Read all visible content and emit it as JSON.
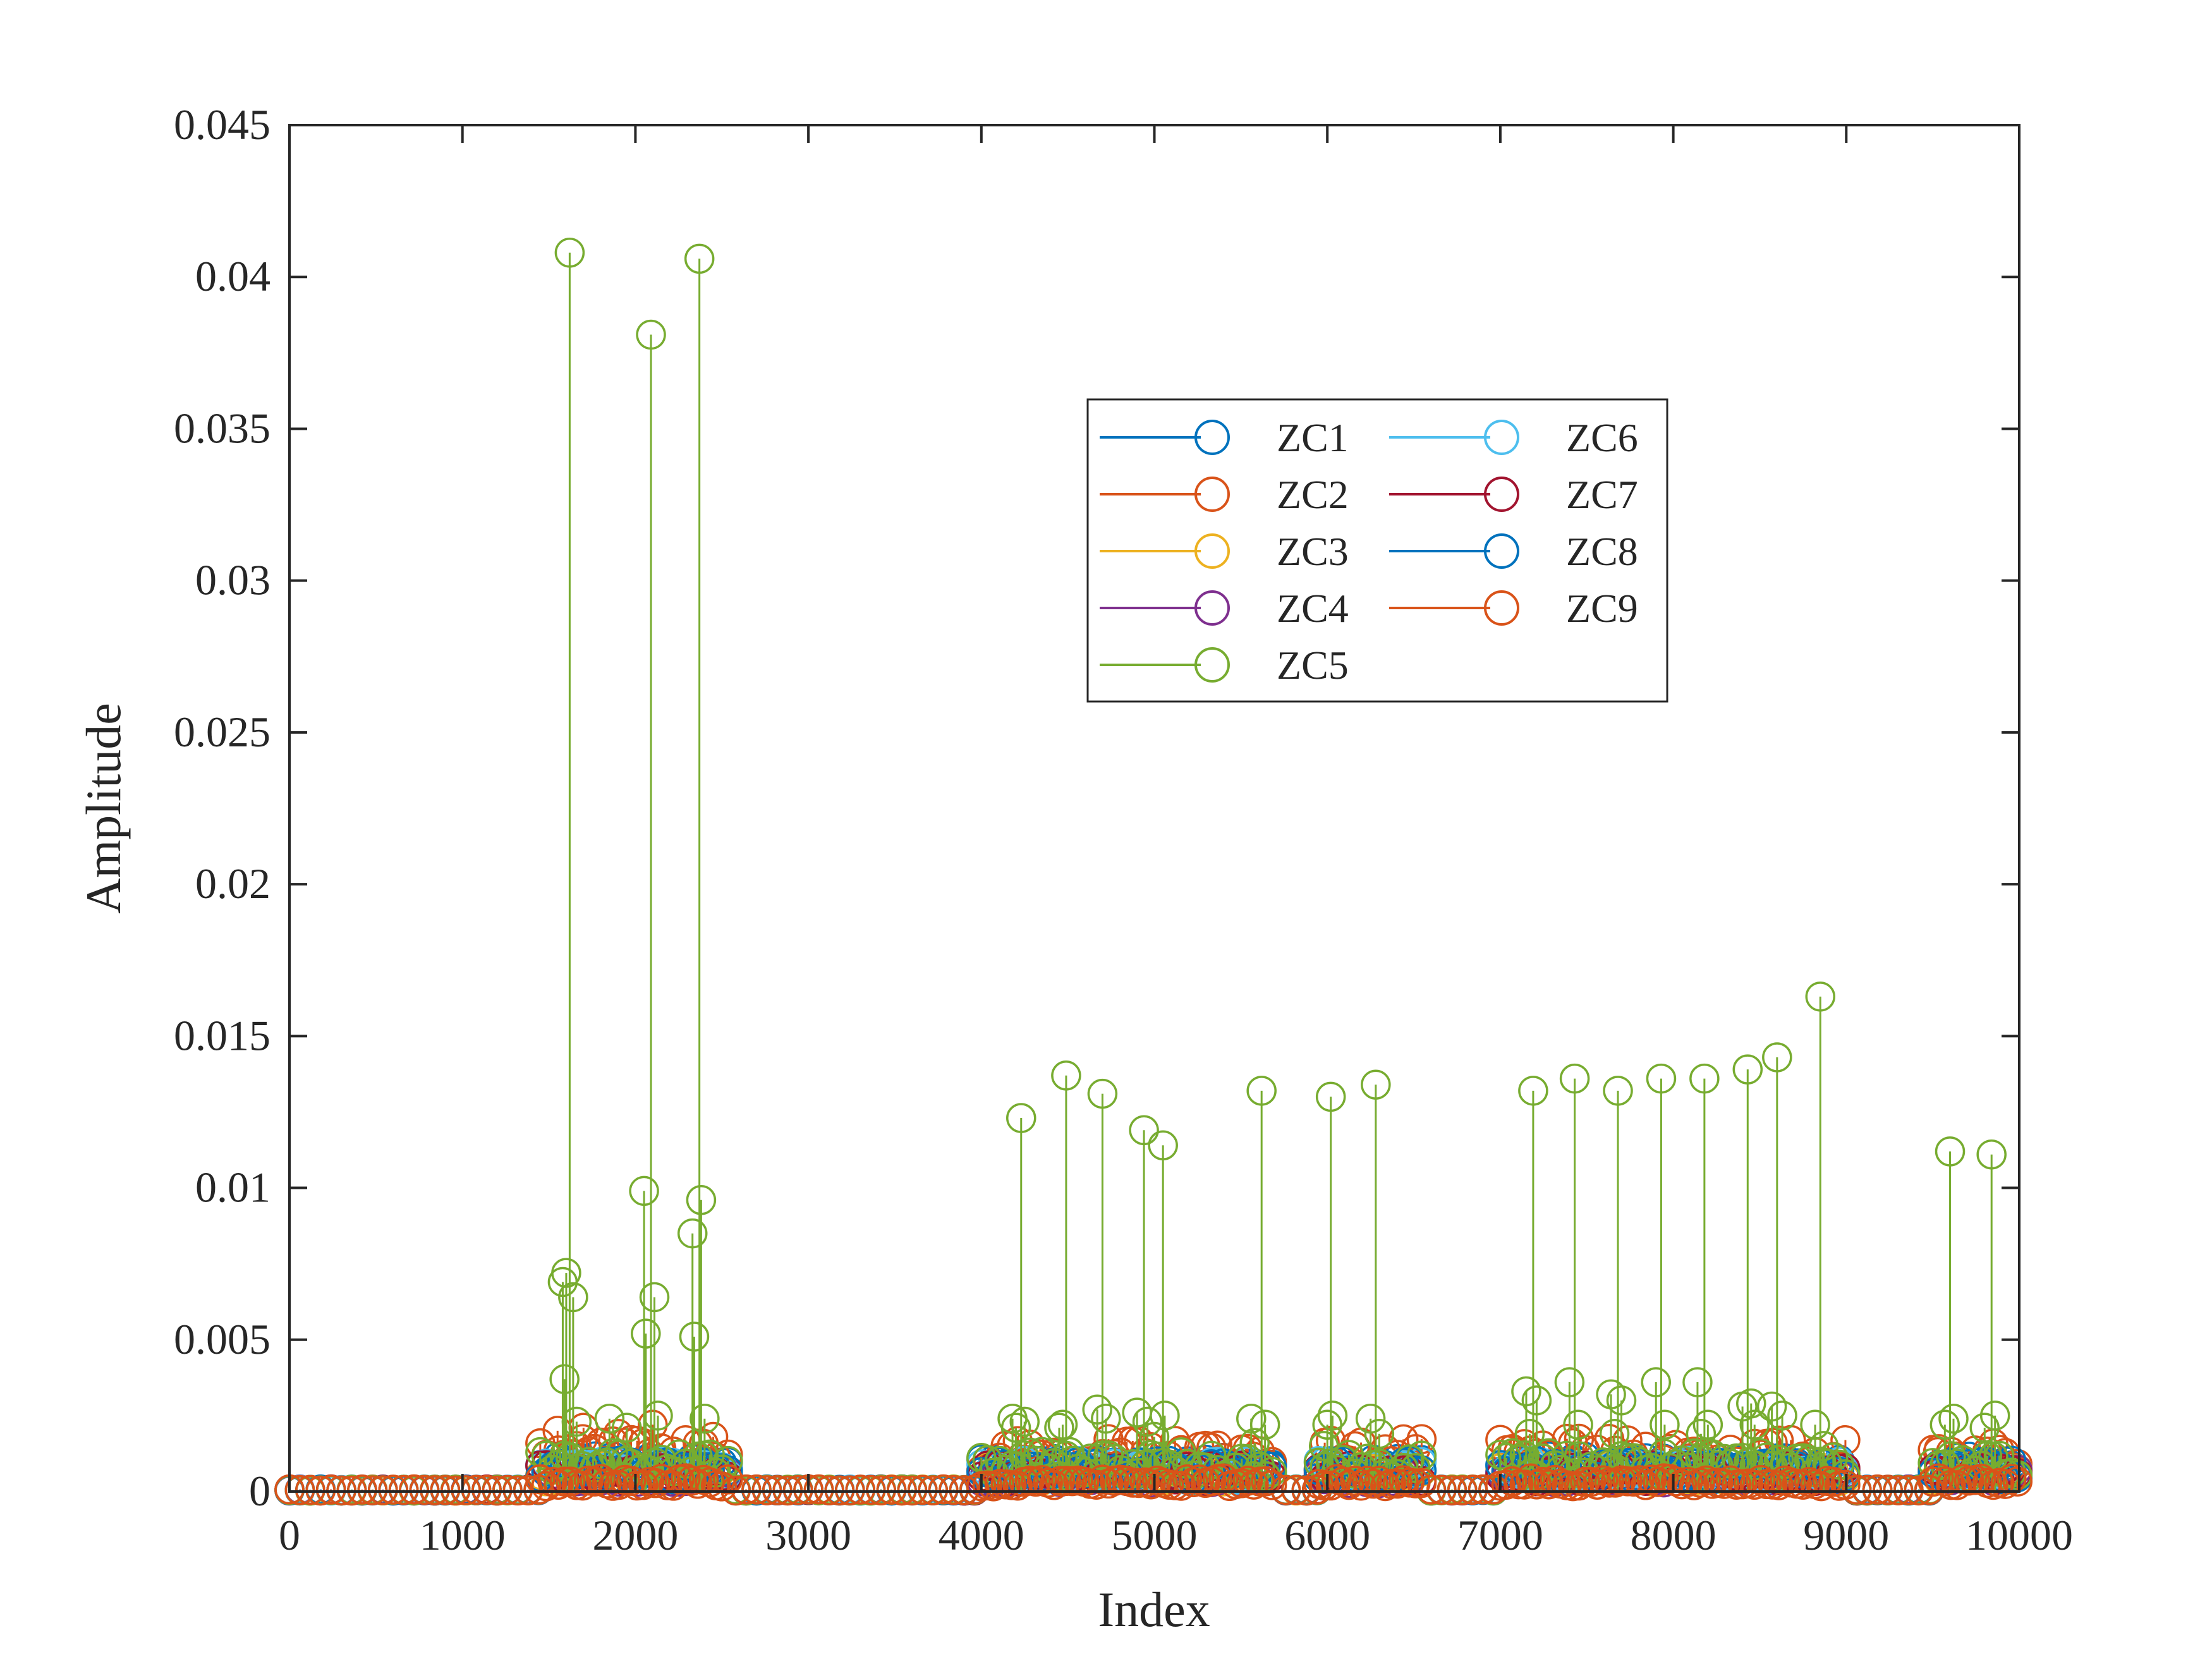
{
  "chart_data": {
    "type": "stem",
    "xlabel": "Index",
    "ylabel": "Amplitude",
    "xlim": [
      0,
      10000
    ],
    "ylim": [
      0,
      0.045
    ],
    "xticks": [
      0,
      1000,
      2000,
      3000,
      4000,
      5000,
      6000,
      7000,
      8000,
      9000,
      10000
    ],
    "xtick_labels": [
      "0",
      "1000",
      "2000",
      "3000",
      "4000",
      "5000",
      "6000",
      "7000",
      "8000",
      "9000",
      "10000"
    ],
    "yticks": [
      0,
      0.005,
      0.01,
      0.015,
      0.02,
      0.025,
      0.03,
      0.035,
      0.04,
      0.045
    ],
    "ytick_labels": [
      "0",
      "0.005",
      "0.01",
      "0.015",
      "0.02",
      "0.025",
      "0.03",
      "0.035",
      "0.04",
      "0.045"
    ],
    "grid": false,
    "legend_position": "upper-center",
    "active_regions": [
      [
        1450,
        2550
      ],
      [
        4000,
        5700
      ],
      [
        5950,
        6550
      ],
      [
        7000,
        9000
      ],
      [
        9500,
        10000
      ]
    ],
    "series": [
      {
        "name": "ZC1",
        "color": "#0072BD",
        "level": 0.0008,
        "points": []
      },
      {
        "name": "ZC2",
        "color": "#D95319",
        "level": 0.0012,
        "points": [
          [
            1550,
            0.002
          ],
          [
            1700,
            0.0021
          ],
          [
            1900,
            0.0019
          ],
          [
            2100,
            0.0022
          ],
          [
            2450,
            0.0018
          ],
          [
            5300,
            0.0009
          ],
          [
            8100,
            0.0011
          ],
          [
            9530,
            0.0013
          ],
          [
            9850,
            0.0009
          ]
        ]
      },
      {
        "name": "ZC3",
        "color": "#EDB120",
        "level": 0.0006,
        "points": []
      },
      {
        "name": "ZC4",
        "color": "#7E2F8E",
        "level": 0.0005,
        "points": []
      },
      {
        "name": "ZC5",
        "color": "#77AC30",
        "level": 0.0009,
        "points": [
          [
            1580,
            0.0069
          ],
          [
            1590,
            0.0037
          ],
          [
            1600,
            0.0072
          ],
          [
            1620,
            0.0408
          ],
          [
            1640,
            0.0064
          ],
          [
            1660,
            0.0023
          ],
          [
            1850,
            0.0024
          ],
          [
            1950,
            0.0021
          ],
          [
            2050,
            0.0099
          ],
          [
            2060,
            0.0052
          ],
          [
            2090,
            0.0381
          ],
          [
            2110,
            0.0064
          ],
          [
            2130,
            0.0025
          ],
          [
            2330,
            0.0085
          ],
          [
            2340,
            0.0051
          ],
          [
            2370,
            0.0406
          ],
          [
            2380,
            0.0096
          ],
          [
            2400,
            0.0024
          ],
          [
            4180,
            0.0024
          ],
          [
            4200,
            0.0021
          ],
          [
            4230,
            0.0123
          ],
          [
            4250,
            0.0023
          ],
          [
            4450,
            0.0021
          ],
          [
            4470,
            0.0022
          ],
          [
            4490,
            0.0137
          ],
          [
            4510,
            0.0013
          ],
          [
            4670,
            0.0027
          ],
          [
            4700,
            0.0131
          ],
          [
            4720,
            0.0024
          ],
          [
            4900,
            0.0026
          ],
          [
            4940,
            0.0119
          ],
          [
            4960,
            0.0023
          ],
          [
            5000,
            0.0018
          ],
          [
            5050,
            0.0114
          ],
          [
            5060,
            0.0025
          ],
          [
            5560,
            0.0024
          ],
          [
            5580,
            0.0016
          ],
          [
            5620,
            0.0132
          ],
          [
            5640,
            0.0022
          ],
          [
            5980,
            0.0015
          ],
          [
            6000,
            0.0022
          ],
          [
            6020,
            0.013
          ],
          [
            6030,
            0.0025
          ],
          [
            6250,
            0.0024
          ],
          [
            6280,
            0.0134
          ],
          [
            6300,
            0.0019
          ],
          [
            7150,
            0.0033
          ],
          [
            7170,
            0.0019
          ],
          [
            7190,
            0.0132
          ],
          [
            7210,
            0.003
          ],
          [
            7400,
            0.0036
          ],
          [
            7430,
            0.0136
          ],
          [
            7450,
            0.0022
          ],
          [
            7640,
            0.0032
          ],
          [
            7660,
            0.0019
          ],
          [
            7680,
            0.0132
          ],
          [
            7700,
            0.003
          ],
          [
            7900,
            0.0036
          ],
          [
            7930,
            0.0136
          ],
          [
            7950,
            0.0022
          ],
          [
            8140,
            0.0036
          ],
          [
            8160,
            0.0019
          ],
          [
            8180,
            0.0136
          ],
          [
            8200,
            0.0022
          ],
          [
            8400,
            0.0028
          ],
          [
            8430,
            0.0139
          ],
          [
            8450,
            0.0029
          ],
          [
            8470,
            0.0022
          ],
          [
            8570,
            0.0028
          ],
          [
            8600,
            0.0143
          ],
          [
            8630,
            0.0025
          ],
          [
            8820,
            0.0022
          ],
          [
            8850,
            0.0163
          ],
          [
            8870,
            0.0015
          ],
          [
            9570,
            0.0022
          ],
          [
            9600,
            0.0112
          ],
          [
            9620,
            0.0024
          ],
          [
            9800,
            0.0021
          ],
          [
            9840,
            0.0111
          ],
          [
            9860,
            0.0025
          ]
        ]
      },
      {
        "name": "ZC6",
        "color": "#4DBEEE",
        "level": 0.0007,
        "points": []
      },
      {
        "name": "ZC7",
        "color": "#A2142F",
        "level": 0.0006,
        "points": []
      },
      {
        "name": "ZC8",
        "color": "#0072BD",
        "level": 0.0007,
        "points": []
      },
      {
        "name": "ZC9",
        "color": "#D95319",
        "level": 0.0003,
        "points": []
      }
    ]
  }
}
